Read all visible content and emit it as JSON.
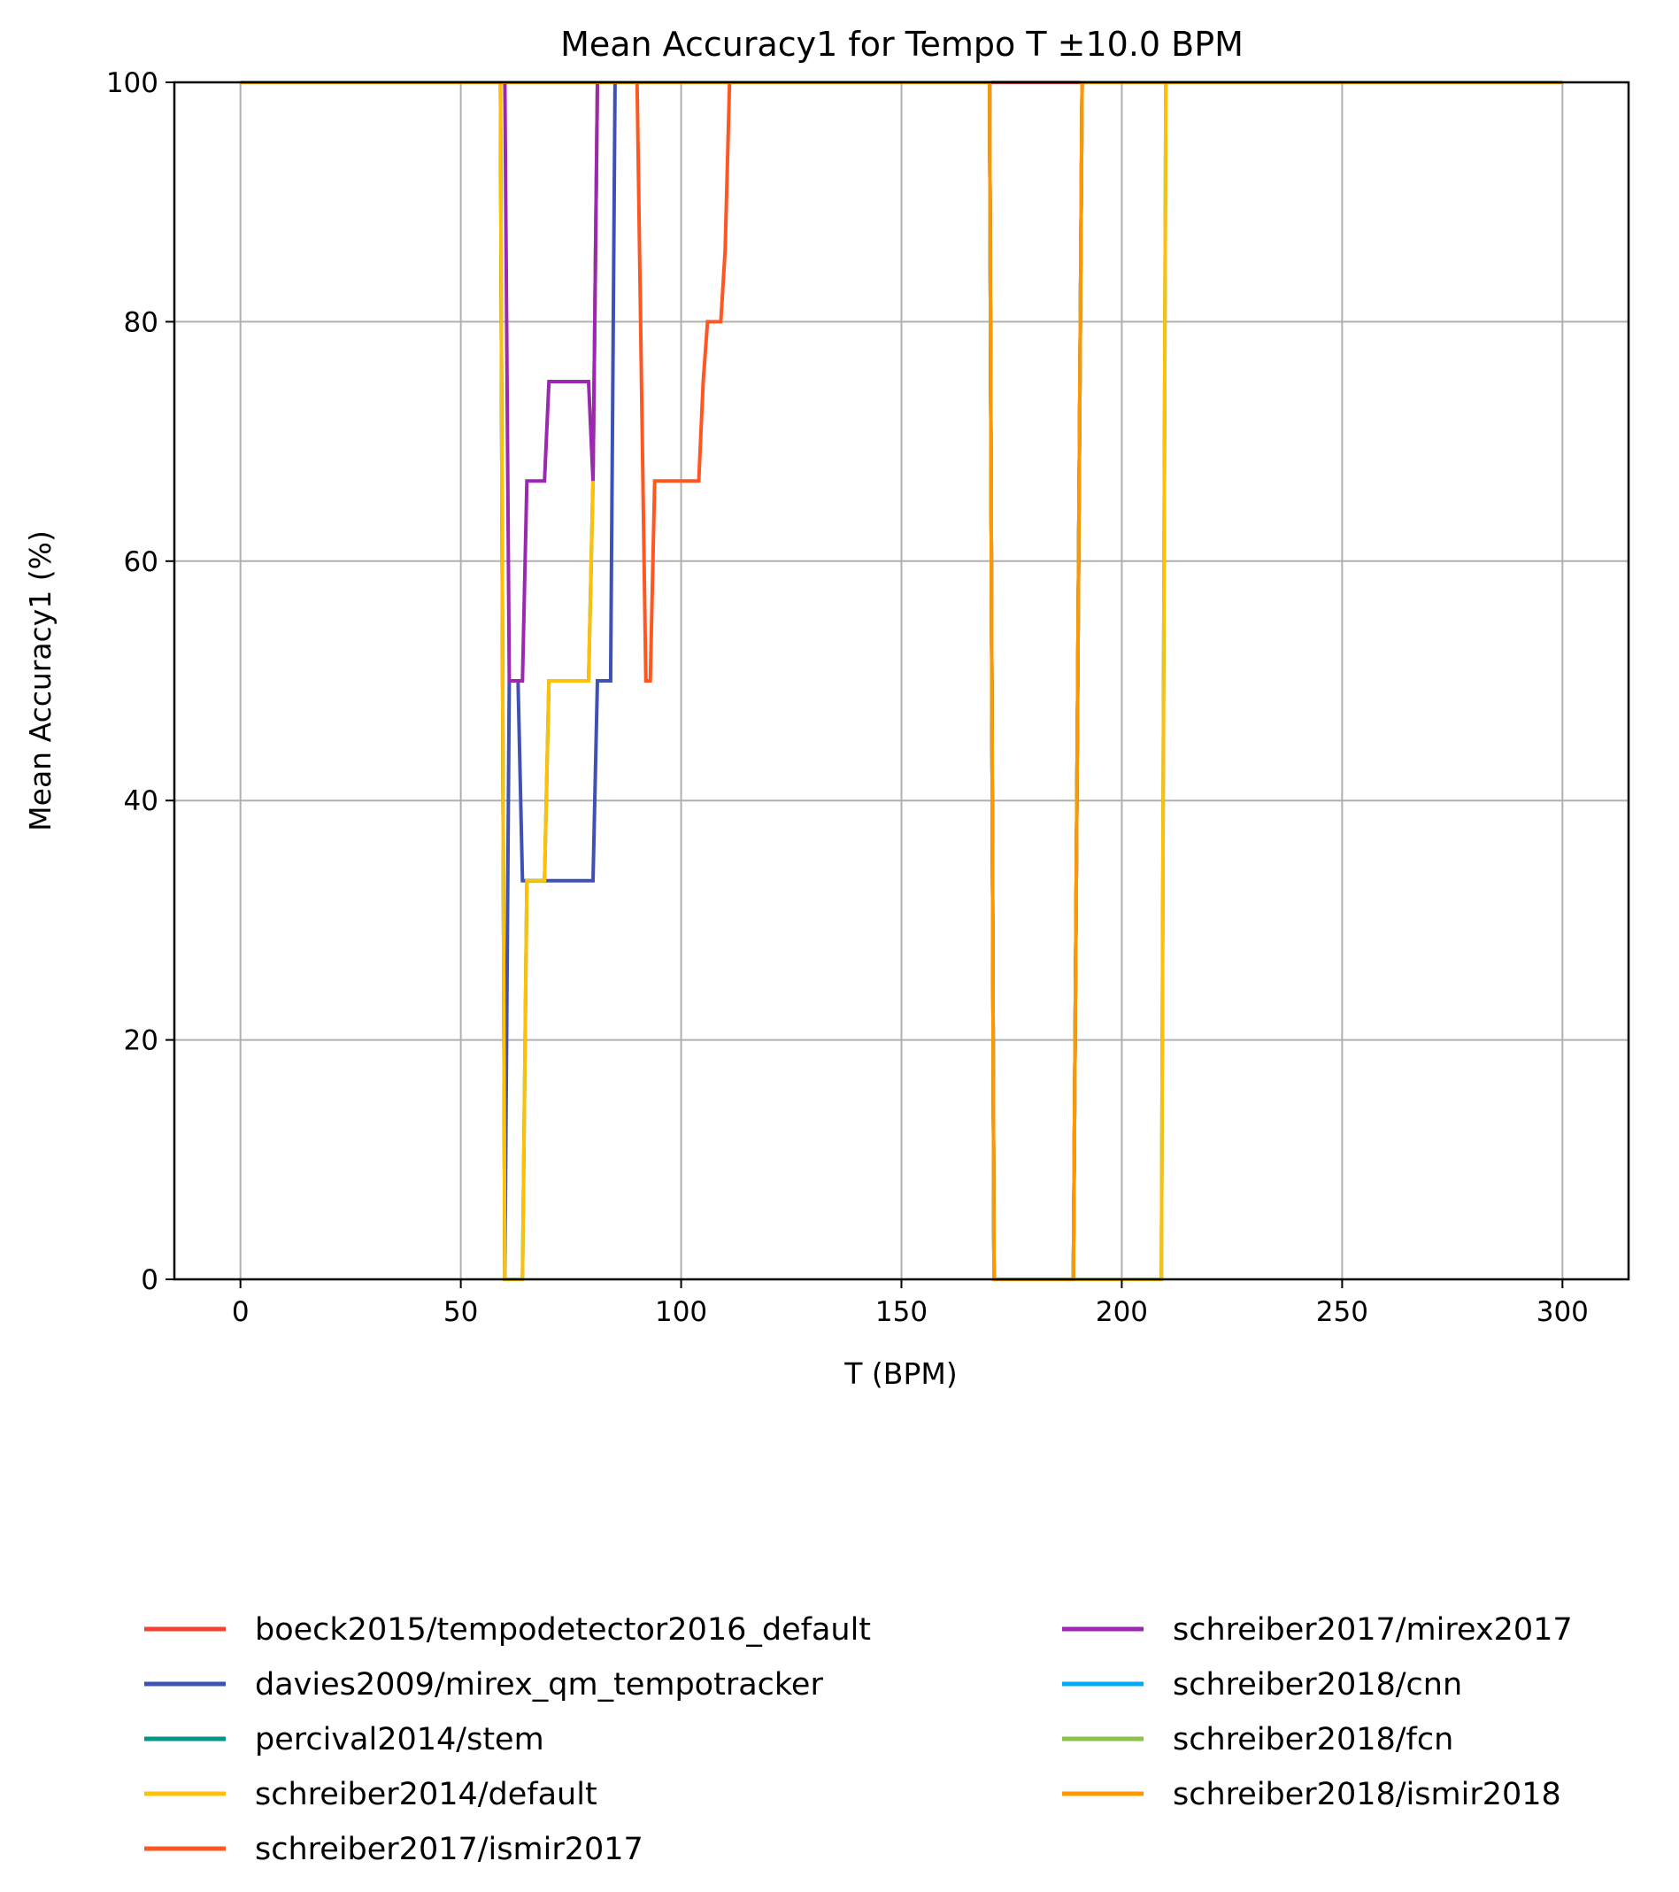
{
  "chart_data": {
    "type": "line",
    "title": "Mean Accuracy1 for Tempo T ±10.0 BPM",
    "xlabel": "T (BPM)",
    "ylabel": "Mean Accuracy1 (%)",
    "xlim": [
      -15,
      315
    ],
    "ylim": [
      0,
      100
    ],
    "xticks": [
      0,
      50,
      100,
      150,
      200,
      250,
      300
    ],
    "yticks": [
      0,
      20,
      40,
      60,
      80,
      100
    ],
    "grid": true,
    "legend_position": "bottom (below plot, two columns)",
    "series": [
      {
        "name": "boeck2015/tempodetector2016_default",
        "color": "#f44336",
        "points": [
          [
            0,
            100
          ],
          [
            300,
            100
          ]
        ]
      },
      {
        "name": "davies2009/mirex_qm_tempotracker",
        "color": "#3f51b5",
        "points": [
          [
            0,
            100
          ],
          [
            59,
            100
          ],
          [
            60,
            0
          ],
          [
            61,
            50
          ],
          [
            63,
            50
          ],
          [
            64,
            33.3
          ],
          [
            80,
            33.3
          ],
          [
            81,
            50
          ],
          [
            84,
            50
          ],
          [
            85,
            100
          ],
          [
            170,
            100
          ],
          [
            171,
            0
          ],
          [
            189,
            0
          ],
          [
            191,
            100
          ],
          [
            300,
            100
          ]
        ]
      },
      {
        "name": "percival2014/stem",
        "color": "#009688",
        "points": [
          [
            0,
            100
          ],
          [
            59,
            100
          ],
          [
            60,
            0
          ],
          [
            64,
            0
          ],
          [
            65,
            33.3
          ],
          [
            69,
            33.3
          ],
          [
            70,
            50
          ],
          [
            79,
            50
          ],
          [
            80,
            66.7
          ],
          [
            81,
            100
          ],
          [
            170,
            100
          ],
          [
            171,
            0
          ],
          [
            209,
            0
          ],
          [
            210,
            100
          ],
          [
            300,
            100
          ]
        ]
      },
      {
        "name": "schreiber2014/default",
        "color": "#ffc107",
        "points": [
          [
            0,
            100
          ],
          [
            59,
            100
          ],
          [
            60,
            0
          ],
          [
            64,
            0
          ],
          [
            65,
            33.3
          ],
          [
            69,
            33.3
          ],
          [
            70,
            50
          ],
          [
            79,
            50
          ],
          [
            80,
            66.7
          ],
          [
            81,
            100
          ],
          [
            170,
            100
          ],
          [
            171,
            0
          ],
          [
            209,
            0
          ],
          [
            210,
            100
          ],
          [
            300,
            100
          ]
        ]
      },
      {
        "name": "schreiber2017/ismir2017",
        "color": "#ff5722",
        "points": [
          [
            0,
            100
          ],
          [
            90,
            100
          ],
          [
            92,
            50
          ],
          [
            93,
            50
          ],
          [
            94,
            66.7
          ],
          [
            104,
            66.7
          ],
          [
            105,
            75
          ],
          [
            106,
            80
          ],
          [
            109,
            80
          ],
          [
            110,
            86
          ],
          [
            111,
            100
          ],
          [
            170,
            100
          ],
          [
            171,
            0
          ],
          [
            189,
            0
          ],
          [
            191,
            100
          ],
          [
            300,
            100
          ]
        ]
      },
      {
        "name": "schreiber2017/mirex2017",
        "color": "#9c27b0",
        "points": [
          [
            0,
            100
          ],
          [
            59,
            100
          ],
          [
            60,
            100
          ],
          [
            61,
            50
          ],
          [
            64,
            50
          ],
          [
            65,
            66.7
          ],
          [
            69,
            66.7
          ],
          [
            70,
            75
          ],
          [
            79,
            75
          ],
          [
            80,
            66.7
          ],
          [
            81,
            100
          ],
          [
            170,
            100
          ],
          [
            171,
            0
          ],
          [
            189,
            0
          ],
          [
            191,
            100
          ],
          [
            300,
            100
          ]
        ]
      },
      {
        "name": "schreiber2018/cnn",
        "color": "#03a9f4",
        "points": [
          [
            0,
            100
          ],
          [
            170,
            100
          ],
          [
            171,
            0
          ],
          [
            189,
            0
          ],
          [
            191,
            100
          ],
          [
            300,
            100
          ]
        ]
      },
      {
        "name": "schreiber2018/fcn",
        "color": "#8bc34a",
        "points": [
          [
            0,
            100
          ],
          [
            170,
            100
          ],
          [
            171,
            0
          ],
          [
            189,
            0
          ],
          [
            191,
            100
          ],
          [
            300,
            100
          ]
        ]
      },
      {
        "name": "schreiber2018/ismir2018",
        "color": "#ff9800",
        "points": [
          [
            0,
            100
          ],
          [
            170,
            100
          ],
          [
            171,
            0
          ],
          [
            189,
            0
          ],
          [
            191,
            100
          ],
          [
            300,
            100
          ]
        ]
      }
    ]
  }
}
